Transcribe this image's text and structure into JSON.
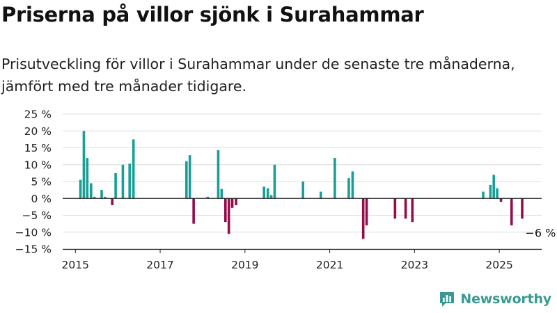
{
  "header": {
    "title": "Priserna på villor sjönk i Surahammar",
    "subtitle": "Prisutveckling för villor i Surahammar under de senaste tre månaderna, jämfört med tre månader tidigare."
  },
  "brand": {
    "name": "Newsworthy",
    "icon": "bar-chart-logo-icon"
  },
  "colors": {
    "positive": "#1a9e96",
    "negative": "#940d4b",
    "grid": "#dddddd",
    "axis": "#222222"
  },
  "chart_data": {
    "type": "bar",
    "x_unit": "decimal-year",
    "x_range": [
      2014.7,
      2026.0
    ],
    "ylim": [
      -15,
      25
    ],
    "y_ticks": [
      25,
      20,
      15,
      10,
      5,
      0,
      -5,
      -10,
      -15
    ],
    "y_tick_labels": [
      "25 %",
      "20 %",
      "15 %",
      "10 %",
      "5 %",
      "0 %",
      "−5 %",
      "−10 %",
      "−15 %"
    ],
    "x_ticks": [
      2015,
      2017,
      2019,
      2021,
      2023,
      2025
    ],
    "x_tick_labels": [
      "2015",
      "2017",
      "2019",
      "2021",
      "2023",
      "2025"
    ],
    "grid": true,
    "annotation": {
      "text": "−6 %",
      "x": 2025.58,
      "y": -6
    },
    "points": [
      {
        "x": 2015.12,
        "y": 5.5
      },
      {
        "x": 2015.2,
        "y": 20.0
      },
      {
        "x": 2015.28,
        "y": 12.0
      },
      {
        "x": 2015.37,
        "y": 4.5
      },
      {
        "x": 2015.45,
        "y": 0.5
      },
      {
        "x": 2015.62,
        "y": 2.5
      },
      {
        "x": 2015.7,
        "y": 0.5
      },
      {
        "x": 2015.87,
        "y": -2.0
      },
      {
        "x": 2015.95,
        "y": 7.5
      },
      {
        "x": 2016.12,
        "y": 10.0
      },
      {
        "x": 2016.28,
        "y": 10.3
      },
      {
        "x": 2016.37,
        "y": 17.5
      },
      {
        "x": 2017.62,
        "y": 11.0
      },
      {
        "x": 2017.7,
        "y": 12.8
      },
      {
        "x": 2017.79,
        "y": -7.5
      },
      {
        "x": 2018.12,
        "y": 0.5
      },
      {
        "x": 2018.37,
        "y": 14.3
      },
      {
        "x": 2018.45,
        "y": 2.8
      },
      {
        "x": 2018.54,
        "y": -7.0
      },
      {
        "x": 2018.62,
        "y": -10.5
      },
      {
        "x": 2018.7,
        "y": -2.8
      },
      {
        "x": 2018.79,
        "y": -2.0
      },
      {
        "x": 2019.45,
        "y": 3.5
      },
      {
        "x": 2019.54,
        "y": 3.0
      },
      {
        "x": 2019.62,
        "y": 1.0
      },
      {
        "x": 2019.7,
        "y": 10.0
      },
      {
        "x": 2020.37,
        "y": 5.0
      },
      {
        "x": 2020.79,
        "y": 2.0
      },
      {
        "x": 2021.12,
        "y": 12.0
      },
      {
        "x": 2021.45,
        "y": 6.0
      },
      {
        "x": 2021.54,
        "y": 8.0
      },
      {
        "x": 2021.79,
        "y": -12.0
      },
      {
        "x": 2021.87,
        "y": -8.0
      },
      {
        "x": 2022.54,
        "y": -6.0
      },
      {
        "x": 2022.79,
        "y": -6.0
      },
      {
        "x": 2022.95,
        "y": -7.0
      },
      {
        "x": 2024.62,
        "y": 2.0
      },
      {
        "x": 2024.79,
        "y": 4.0
      },
      {
        "x": 2024.87,
        "y": 7.0
      },
      {
        "x": 2024.95,
        "y": 3.0
      },
      {
        "x": 2025.04,
        "y": -1.0
      },
      {
        "x": 2025.29,
        "y": -8.0
      },
      {
        "x": 2025.54,
        "y": -6.0
      }
    ]
  }
}
